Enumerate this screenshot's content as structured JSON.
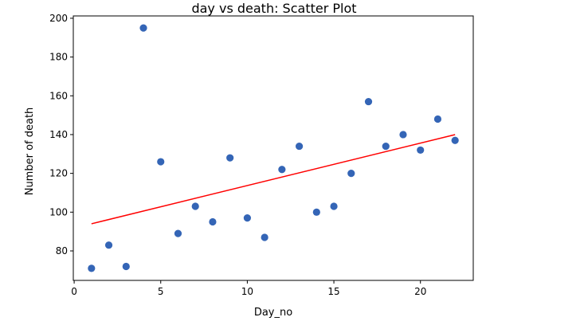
{
  "chart_data": {
    "type": "scatter",
    "title": "day vs death: Scatter Plot",
    "xlabel": "Day_no",
    "ylabel": "Number of death",
    "xlim": [
      -0.05,
      23.05
    ],
    "ylim": [
      64.8,
      201.2
    ],
    "xticks": [
      0,
      5,
      10,
      15,
      20
    ],
    "yticks": [
      80,
      100,
      120,
      140,
      160,
      180,
      200
    ],
    "grid": false,
    "legend": "none",
    "series": [
      {
        "x": [
          1,
          2,
          3,
          4,
          5,
          6,
          7,
          8,
          9,
          10,
          11,
          12,
          13,
          14,
          15,
          16,
          17,
          18,
          19,
          20,
          21,
          22
        ],
        "y": [
          71,
          83,
          72,
          195,
          126,
          89,
          103,
          95,
          128,
          97,
          87,
          122,
          134,
          100,
          103,
          120,
          157,
          134,
          140,
          132,
          148,
          137
        ],
        "color": "#3465b6"
      }
    ],
    "trendline": {
      "x": [
        1,
        22
      ],
      "y": [
        94,
        140
      ],
      "color": "#ff0000"
    }
  }
}
